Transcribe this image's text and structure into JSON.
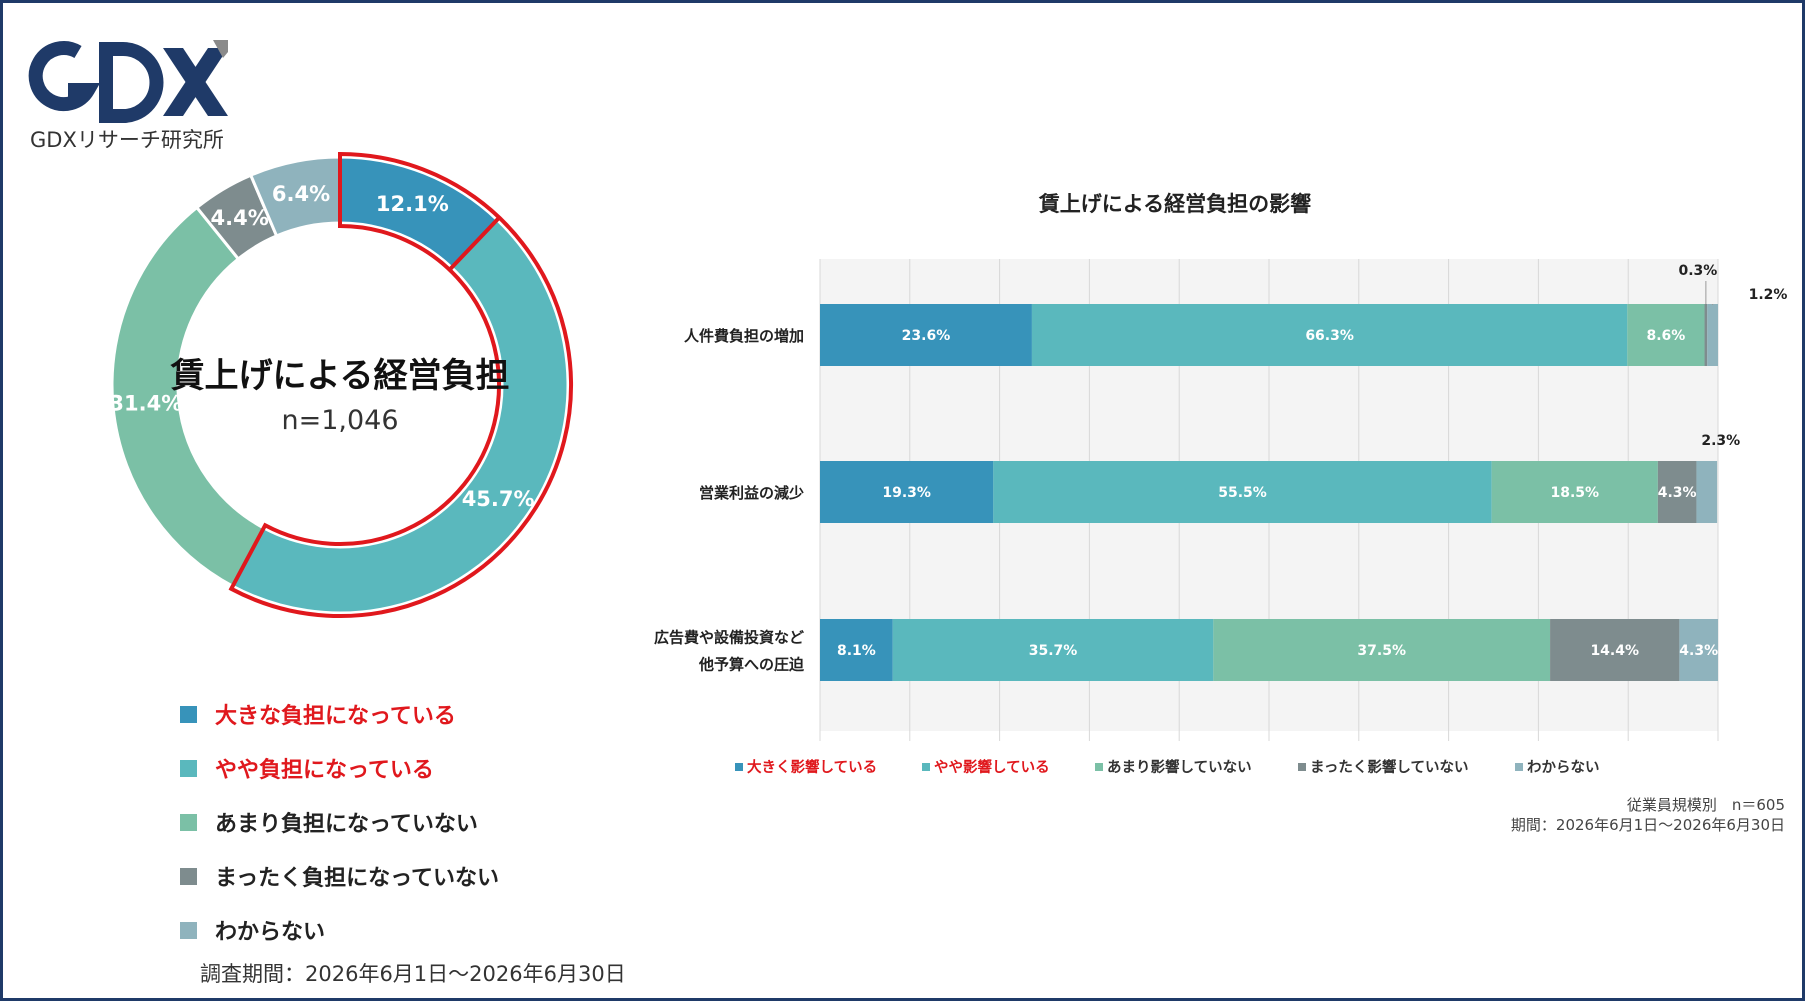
{
  "logo": {
    "mark": "GDX",
    "caption": "GDXリサーチ研究所"
  },
  "donut": {
    "title": "賃上げによる経営負担",
    "n": "n=1,046",
    "slices": [
      {
        "label": "12.1%",
        "value": 12.1,
        "color": "#3793ba",
        "highlight": true
      },
      {
        "label": "45.7%",
        "value": 45.7,
        "color": "#5ab8bd",
        "highlight": true
      },
      {
        "label": "31.4%",
        "value": 31.4,
        "color": "#7bc0a6",
        "highlight": false
      },
      {
        "label": "4.4%",
        "value": 4.4,
        "color": "#7e8c8e",
        "highlight": false
      },
      {
        "label": "6.4%",
        "value": 6.4,
        "color": "#8fb3bd",
        "highlight": false
      }
    ],
    "legend": [
      {
        "label": "大きな負担になっている",
        "color": "#3793ba",
        "text_color": "#e0181d"
      },
      {
        "label": "やや負担になっている",
        "color": "#5ab8bd",
        "text_color": "#e0181d"
      },
      {
        "label": "あまり負担になっていない",
        "color": "#7bc0a6",
        "text_color": "#222222"
      },
      {
        "label": "まったく負担になっていない",
        "color": "#7e8c8e",
        "text_color": "#222222"
      },
      {
        "label": "わからない",
        "color": "#8fb3bd",
        "text_color": "#222222"
      }
    ],
    "period": "調査期間：2026年6月1日～2026年6月30日"
  },
  "chart_data": [
    {
      "type": "pie",
      "title": "賃上げによる経営負担",
      "subtitle": "n=1,046",
      "categories": [
        "大きな負担になっている",
        "やや負担になっている",
        "あまり負担になっていない",
        "まったく負担になっていない",
        "わからない"
      ],
      "values": [
        12.1,
        45.7,
        31.4,
        4.4,
        6.4
      ],
      "colors": [
        "#3793ba",
        "#5ab8bd",
        "#7bc0a6",
        "#7e8c8e",
        "#8fb3bd"
      ]
    },
    {
      "type": "bar",
      "orientation": "horizontal",
      "stacked": true,
      "title": "賃上げによる経営負担の影響",
      "categories": [
        "人件費負担の増加",
        "営業利益の減少",
        "広告費や設備投資など 他予算への圧迫"
      ],
      "category_lines": [
        [
          "人件費負担の増加"
        ],
        [
          "営業利益の減少"
        ],
        [
          "広告費や設備投資など",
          "他予算への圧迫"
        ]
      ],
      "xlim": [
        0,
        100
      ],
      "grid": true,
      "legend_position": "bottom",
      "series": [
        {
          "name": "大きく影響している",
          "color": "#3793ba",
          "text_color": "#e0181d",
          "values": [
            23.6,
            19.3,
            8.1
          ],
          "labels": [
            "23.6%",
            "19.3%",
            "8.1%"
          ]
        },
        {
          "name": "やや影響している",
          "color": "#5ab8bd",
          "text_color": "#e0181d",
          "values": [
            66.3,
            55.5,
            35.7
          ],
          "labels": [
            "66.3%",
            "55.5%",
            "35.7%"
          ]
        },
        {
          "name": "あまり影響していない",
          "color": "#7bc0a6",
          "text_color": "#333333",
          "values": [
            8.6,
            18.5,
            37.5
          ],
          "labels": [
            "8.6%",
            "18.5%",
            "37.5%"
          ]
        },
        {
          "name": "まったく影響していない",
          "color": "#7e8c8e",
          "text_color": "#333333",
          "values": [
            0.3,
            4.3,
            14.4
          ],
          "labels": [
            "0.3%",
            "4.3%",
            "14.4%"
          ]
        },
        {
          "name": "わからない",
          "color": "#8fb3bd",
          "text_color": "#333333",
          "values": [
            1.2,
            2.3,
            4.3
          ],
          "labels": [
            "1.2%",
            "2.3%",
            "4.3%"
          ]
        }
      ],
      "footer": [
        "従業員規模別　n＝605",
        "期間：2026年6月1日～2026年6月30日"
      ]
    }
  ]
}
